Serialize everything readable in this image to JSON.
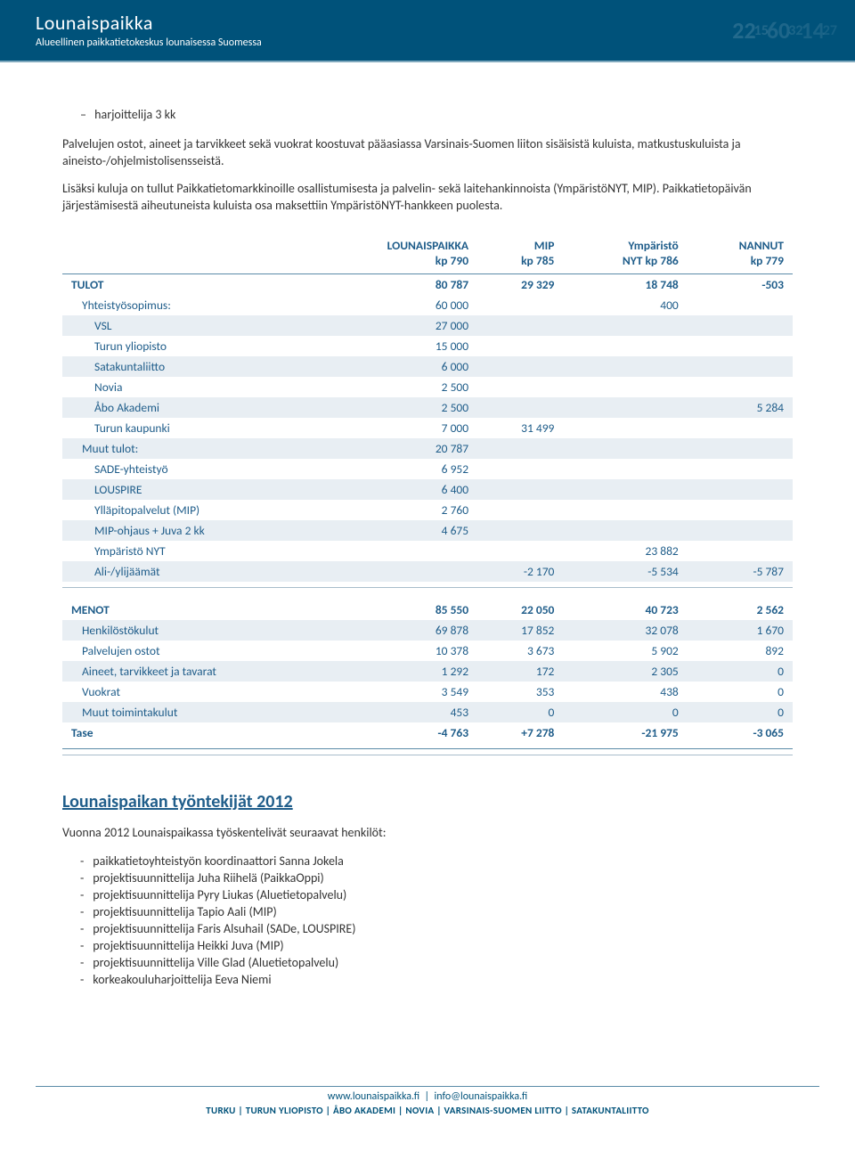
{
  "header": {
    "brand": "Lounaispaikka",
    "tagline": "Alueellinen paikkatietokeskus lounaisessa Suomessa",
    "decor": [
      "22",
      "15",
      "60",
      "32",
      "14",
      "27"
    ]
  },
  "intro": {
    "bullet": "harjoittelija 3 kk",
    "p1": "Palvelujen ostot, aineet ja tarvikkeet sekä vuokrat koostuvat pääasiassa Varsinais-Suomen liiton sisäisistä kuluista, matkustuskuluista ja aineisto-/ohjelmistolisensseistä.",
    "p2": "Lisäksi kuluja on tullut Paikkatietomarkkinoille osallistumisesta ja palvelin- sekä laitehankinnoista (YmpäristöNYT, MIP). Paikkatietopäivän järjestämisestä aiheutuneista kuluista osa maksettiin YmpäristöNYT-hankkeen puolesta."
  },
  "table": {
    "columns": [
      {
        "label": "",
        "sub": ""
      },
      {
        "label": "LOUNAISPAIKKA",
        "sub": "kp 790"
      },
      {
        "label": "MIP",
        "sub": "kp 785"
      },
      {
        "label": "Ympäristö",
        "sub": "NYT kp 786"
      },
      {
        "label": "NANNUT",
        "sub": "kp 779"
      }
    ],
    "rows": [
      {
        "type": "section",
        "stripe": false,
        "cells": [
          "TULOT",
          "80 787",
          "29 329",
          "18 748",
          "-503"
        ]
      },
      {
        "type": "level1",
        "stripe": false,
        "cells": [
          "Yhteistyösopimus:",
          "60 000",
          "",
          "400",
          ""
        ]
      },
      {
        "type": "level2",
        "stripe": true,
        "cells": [
          "VSL",
          "27 000",
          "",
          "",
          ""
        ]
      },
      {
        "type": "level2",
        "stripe": false,
        "cells": [
          "Turun yliopisto",
          "15 000",
          "",
          "",
          ""
        ]
      },
      {
        "type": "level2",
        "stripe": true,
        "cells": [
          "Satakuntaliitto",
          "6 000",
          "",
          "",
          ""
        ]
      },
      {
        "type": "level2",
        "stripe": false,
        "cells": [
          "Novia",
          "2 500",
          "",
          "",
          ""
        ]
      },
      {
        "type": "level2",
        "stripe": true,
        "cells": [
          "Åbo Akademi",
          "2 500",
          "",
          "",
          "5 284"
        ]
      },
      {
        "type": "level2",
        "stripe": false,
        "cells": [
          "Turun kaupunki",
          "7 000",
          "31 499",
          "",
          ""
        ]
      },
      {
        "type": "level1",
        "stripe": true,
        "cells": [
          "Muut tulot:",
          "20 787",
          "",
          "",
          ""
        ]
      },
      {
        "type": "level2",
        "stripe": false,
        "cells": [
          "SADE-yhteistyö",
          "6 952",
          "",
          "",
          ""
        ]
      },
      {
        "type": "level2",
        "stripe": true,
        "cells": [
          "LOUSPIRE",
          "6 400",
          "",
          "",
          ""
        ]
      },
      {
        "type": "level2",
        "stripe": false,
        "cells": [
          "Ylläpitopalvelut (MIP)",
          "2 760",
          "",
          "",
          ""
        ]
      },
      {
        "type": "level2",
        "stripe": true,
        "cells": [
          "MIP-ohjaus + Juva 2 kk",
          "4 675",
          "",
          "",
          ""
        ]
      },
      {
        "type": "level2",
        "stripe": false,
        "cells": [
          "Ympäristö NYT",
          "",
          "",
          "23 882",
          ""
        ]
      },
      {
        "type": "level2",
        "stripe": true,
        "cells": [
          "Ali-/ylijäämät",
          "",
          "-2 170",
          "-5 534",
          "-5 787"
        ]
      },
      {
        "type": "thinline"
      },
      {
        "type": "spacer"
      },
      {
        "type": "section",
        "stripe": false,
        "cells": [
          "MENOT",
          "85 550",
          "22 050",
          "40 723",
          "2 562"
        ]
      },
      {
        "type": "level1",
        "stripe": true,
        "cells": [
          "Henkilöstökulut",
          "69 878",
          "17 852",
          "32 078",
          "1 670"
        ]
      },
      {
        "type": "level1",
        "stripe": false,
        "cells": [
          "Palvelujen ostot",
          "10 378",
          "3 673",
          "5 902",
          "892"
        ]
      },
      {
        "type": "level1",
        "stripe": true,
        "cells": [
          "Aineet, tarvikkeet ja tavarat",
          "1 292",
          "172",
          "2 305",
          "0"
        ]
      },
      {
        "type": "level1",
        "stripe": false,
        "cells": [
          "Vuokrat",
          "3 549",
          "353",
          "438",
          "0"
        ]
      },
      {
        "type": "level1",
        "stripe": true,
        "cells": [
          "Muut toimintakulut",
          "453",
          "0",
          "0",
          "0"
        ]
      },
      {
        "type": "section",
        "stripe": false,
        "cells": [
          "Tase",
          "-4 763",
          "+7 278",
          "-21 975",
          "-3 065"
        ]
      },
      {
        "type": "thickline"
      },
      {
        "type": "thinline"
      }
    ],
    "colors": {
      "heading": "#1f5d8a",
      "stripe": "#e8eef3",
      "border": "#5b8ba8"
    }
  },
  "staff": {
    "title": "Lounaispaikan työntekijät 2012",
    "intro": "Vuonna 2012 Lounaispaikassa työskentelivät seuraavat henkilöt:",
    "items": [
      "paikkatietoyhteistyön koordinaattori Sanna Jokela",
      "projektisuunnittelija Juha Riihelä (PaikkaOppi)",
      "projektisuunnittelija Pyry Liukas (Aluetietopalvelu)",
      "projektisuunnittelija Tapio Aali (MIP)",
      "projektisuunnittelija Faris Alsuhail (SADe, LOUSPIRE)",
      "projektisuunnittelija Heikki Juva (MIP)",
      "projektisuunnittelija Ville Glad (Aluetietopalvelu)",
      "korkeakouluharjoittelija Eeva Niemi"
    ]
  },
  "footer": {
    "link1": "www.lounaispaikka.fi",
    "link2": "info@lounaispaikka.fi",
    "orgs": "TURKU  |  TURUN YLIOPISTO  |  ÅBO AKADEMI  |  NOVIA  |  VARSINAIS-SUOMEN LIITTO  |  SATAKUNTALIITTO"
  }
}
